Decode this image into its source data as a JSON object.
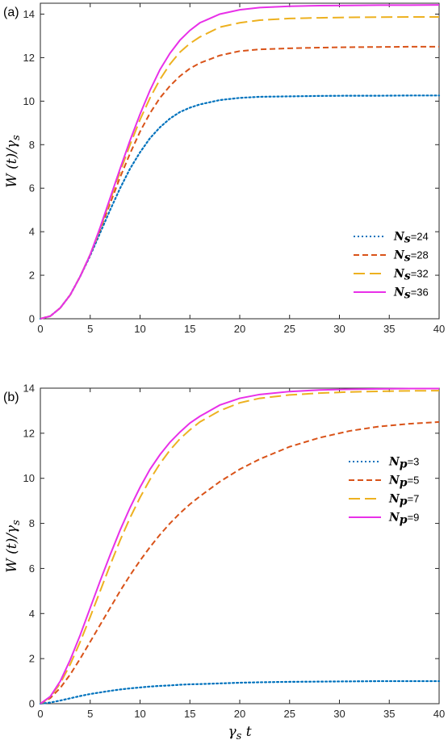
{
  "chart_data": [
    {
      "type": "line",
      "panel_label": "(a)",
      "xlabel": "",
      "ylabel": "W (t)/γs",
      "xlim": [
        0,
        40
      ],
      "ylim": [
        0,
        14.5
      ],
      "xticks": [
        "0",
        "5",
        "10",
        "15",
        "20",
        "25",
        "30",
        "35",
        "40"
      ],
      "yticks": [
        "0",
        "2",
        "4",
        "6",
        "8",
        "10",
        "12",
        "14"
      ],
      "grid": false,
      "legend_position": "bottom-right",
      "x": [
        0,
        1,
        2,
        3,
        4,
        5,
        6,
        7,
        8,
        9,
        10,
        11,
        12,
        13,
        14,
        15,
        16,
        18,
        20,
        22,
        25,
        28,
        31,
        34,
        37,
        40
      ],
      "series": [
        {
          "name": "Ns=24",
          "sym": "N",
          "sub": "s",
          "val": "=24",
          "style": "dotted",
          "color": "#0072BD",
          "values": [
            0,
            0.12,
            0.5,
            1.1,
            1.95,
            2.9,
            3.95,
            5.0,
            6.0,
            6.9,
            7.65,
            8.3,
            8.8,
            9.2,
            9.5,
            9.7,
            9.85,
            10.05,
            10.15,
            10.2,
            10.22,
            10.24,
            10.25,
            10.25,
            10.26,
            10.26
          ]
        },
        {
          "name": "Ns=28",
          "sym": "N",
          "sub": "s",
          "val": "=28",
          "style": "dashed",
          "color": "#D95319",
          "values": [
            0,
            0.12,
            0.5,
            1.1,
            1.95,
            2.95,
            4.1,
            5.3,
            6.5,
            7.6,
            8.6,
            9.45,
            10.15,
            10.7,
            11.15,
            11.5,
            11.75,
            12.1,
            12.3,
            12.38,
            12.43,
            12.46,
            12.48,
            12.49,
            12.5,
            12.5
          ]
        },
        {
          "name": "Ns=32",
          "sym": "N",
          "sub": "s",
          "val": "=32",
          "style": "longdash",
          "color": "#EDB120",
          "values": [
            0,
            0.12,
            0.5,
            1.1,
            1.95,
            2.95,
            4.15,
            5.45,
            6.75,
            8.0,
            9.15,
            10.15,
            11.0,
            11.7,
            12.25,
            12.65,
            12.95,
            13.4,
            13.6,
            13.72,
            13.8,
            13.83,
            13.85,
            13.86,
            13.87,
            13.87
          ]
        },
        {
          "name": "Ns=36",
          "sym": "N",
          "sub": "s",
          "val": "=36",
          "style": "solid",
          "color": "#E830E8",
          "values": [
            0,
            0.12,
            0.5,
            1.1,
            1.95,
            2.95,
            4.2,
            5.55,
            6.9,
            8.2,
            9.4,
            10.5,
            11.45,
            12.2,
            12.8,
            13.25,
            13.6,
            14.0,
            14.2,
            14.3,
            14.36,
            14.39,
            14.4,
            14.41,
            14.41,
            14.42
          ]
        }
      ]
    },
    {
      "type": "line",
      "panel_label": "(b)",
      "xlabel": "γs t",
      "ylabel": "W (t)/γs",
      "xlim": [
        0,
        40
      ],
      "ylim": [
        0,
        14
      ],
      "xticks": [
        "0",
        "5",
        "10",
        "15",
        "20",
        "25",
        "30",
        "35",
        "40"
      ],
      "yticks": [
        "0",
        "2",
        "4",
        "6",
        "8",
        "10",
        "12",
        "14"
      ],
      "grid": false,
      "legend_position": "middle-right",
      "x": [
        0,
        1,
        2,
        3,
        4,
        5,
        6,
        7,
        8,
        9,
        10,
        11,
        12,
        13,
        14,
        15,
        16,
        18,
        20,
        22,
        25,
        28,
        31,
        34,
        37,
        40
      ],
      "series": [
        {
          "name": "Np=3",
          "sym": "N",
          "sub": "p",
          "val": "=3",
          "style": "dotted",
          "color": "#0072BD",
          "values": [
            0,
            0.05,
            0.14,
            0.24,
            0.34,
            0.43,
            0.5,
            0.57,
            0.63,
            0.68,
            0.72,
            0.76,
            0.79,
            0.81,
            0.84,
            0.86,
            0.87,
            0.9,
            0.93,
            0.95,
            0.97,
            0.98,
            0.99,
            1.0,
            1.0,
            1.0
          ]
        },
        {
          "name": "Np=5",
          "sym": "N",
          "sub": "p",
          "val": "=5",
          "style": "dashed",
          "color": "#D95319",
          "values": [
            0,
            0.25,
            0.7,
            1.3,
            2.0,
            2.75,
            3.5,
            4.25,
            5.0,
            5.7,
            6.35,
            6.95,
            7.5,
            8.0,
            8.45,
            8.85,
            9.2,
            9.85,
            10.4,
            10.85,
            11.4,
            11.8,
            12.1,
            12.3,
            12.42,
            12.5
          ]
        },
        {
          "name": "Np=7",
          "sym": "N",
          "sub": "p",
          "val": "=7",
          "style": "longdash",
          "color": "#EDB120",
          "values": [
            0,
            0.3,
            0.9,
            1.75,
            2.75,
            3.85,
            5.0,
            6.15,
            7.25,
            8.25,
            9.15,
            9.95,
            10.65,
            11.25,
            11.75,
            12.15,
            12.5,
            13.0,
            13.35,
            13.55,
            13.7,
            13.78,
            13.83,
            13.86,
            13.88,
            13.89
          ]
        },
        {
          "name": "Np=9",
          "sym": "N",
          "sub": "p",
          "val": "=9",
          "style": "solid",
          "color": "#E830E8",
          "values": [
            0,
            0.32,
            1.0,
            1.95,
            3.05,
            4.25,
            5.45,
            6.6,
            7.7,
            8.7,
            9.6,
            10.4,
            11.05,
            11.6,
            12.05,
            12.45,
            12.75,
            13.25,
            13.55,
            13.72,
            13.85,
            13.92,
            13.95,
            13.97,
            13.98,
            13.98
          ]
        }
      ]
    }
  ]
}
